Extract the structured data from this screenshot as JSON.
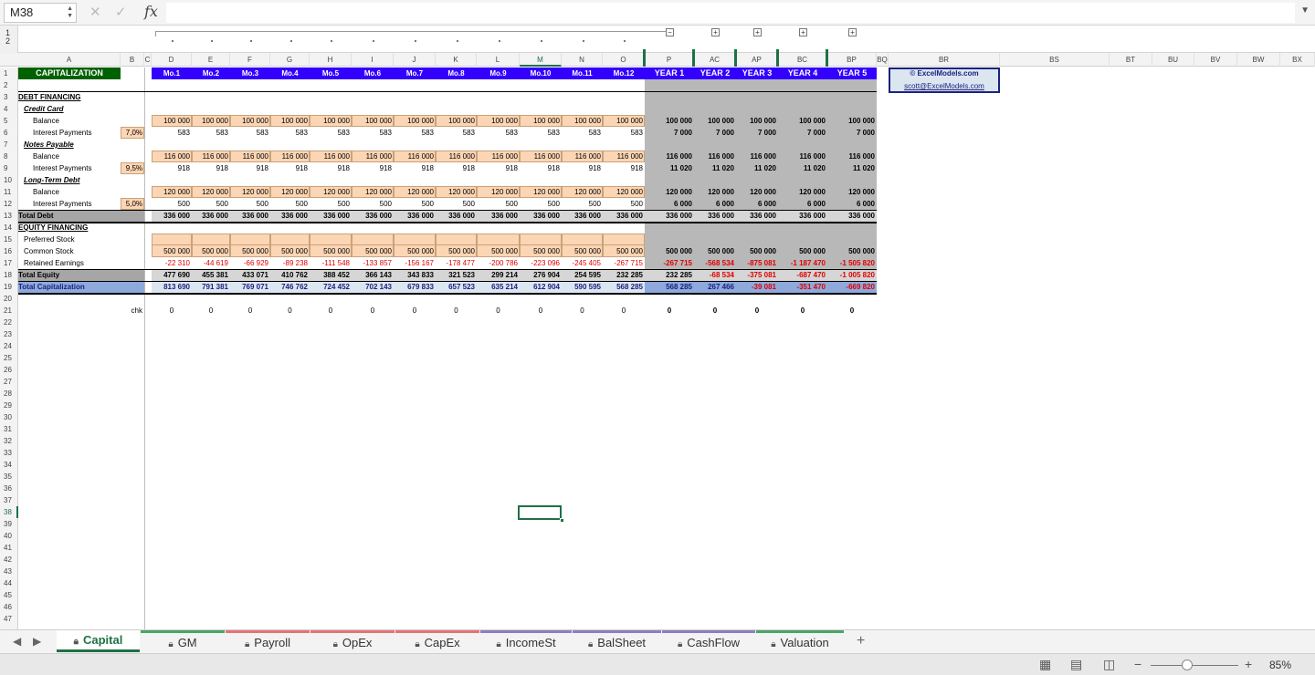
{
  "formula_bar": {
    "name_box": "M38",
    "fx": "fx"
  },
  "outline": {
    "levels": [
      "1",
      "2"
    ],
    "buttons": [
      "−",
      "+",
      "+",
      "+",
      "+"
    ]
  },
  "columns": [
    "A",
    "B",
    "C",
    "D",
    "E",
    "F",
    "G",
    "H",
    "I",
    "J",
    "K",
    "L",
    "M",
    "N",
    "O",
    "P",
    "AC",
    "AP",
    "BC",
    "BP",
    "BQ",
    "BR",
    "BS",
    "BT",
    "BU",
    "BV",
    "BW",
    "BX"
  ],
  "active_col": "M",
  "active_row": "38",
  "rows": [
    "1",
    "2",
    "3",
    "4",
    "5",
    "6",
    "7",
    "8",
    "9",
    "10",
    "11",
    "12",
    "13",
    "14",
    "15",
    "16",
    "17",
    "18",
    "19",
    "20",
    "21",
    "22",
    "23",
    "24",
    "25",
    "26",
    "27",
    "28",
    "29",
    "30",
    "31",
    "32",
    "33",
    "34",
    "35",
    "36",
    "37",
    "38",
    "39",
    "40",
    "41",
    "42",
    "43",
    "44",
    "45",
    "46",
    "47"
  ],
  "sheet": {
    "title": "CAPITALIZATION",
    "months": [
      "Mo.1",
      "Mo.2",
      "Mo.3",
      "Mo.4",
      "Mo.5",
      "Mo.6",
      "Mo.7",
      "Mo.8",
      "Mo.9",
      "Mo.10",
      "Mo.11",
      "Mo.12"
    ],
    "years": [
      "YEAR 1",
      "YEAR 2",
      "YEAR 3",
      "YEAR 4",
      "YEAR 5"
    ],
    "copyright": "© ExcelModels.com",
    "email": "scott@ExcelModels.com",
    "labels": {
      "debt_financing": "DEBT FINANCING",
      "credit_card": "Credit Card",
      "balance": "Balance",
      "interest_payments": "Interest Payments",
      "notes_payable": "Notes Payable",
      "long_term_debt": "Long-Term Debt",
      "total_debt": "Total Debt",
      "equity_financing": "EQUITY FINANCING",
      "preferred_stock": "Preferred Stock",
      "common_stock": "Common Stock",
      "retained_earnings": "Retained Earnings",
      "total_equity": "Total Equity",
      "total_capitalization": "Total Capitalization",
      "chk": "chk"
    },
    "rates": {
      "credit_card": "7,0%",
      "notes_payable": "9,5%",
      "long_term_debt": "5,0%"
    },
    "data": {
      "cc_balance": [
        "100 000",
        "100 000",
        "100 000",
        "100 000",
        "100 000",
        "100 000",
        "100 000",
        "100 000",
        "100 000",
        "100 000",
        "100 000",
        "100 000",
        "100 000",
        "100 000",
        "100 000",
        "100 000",
        "100 000"
      ],
      "cc_interest": [
        "583",
        "583",
        "583",
        "583",
        "583",
        "583",
        "583",
        "583",
        "583",
        "583",
        "583",
        "583",
        "7 000",
        "7 000",
        "7 000",
        "7 000",
        "7 000"
      ],
      "np_balance": [
        "116 000",
        "116 000",
        "116 000",
        "116 000",
        "116 000",
        "116 000",
        "116 000",
        "116 000",
        "116 000",
        "116 000",
        "116 000",
        "116 000",
        "116 000",
        "116 000",
        "116 000",
        "116 000",
        "116 000"
      ],
      "np_interest": [
        "918",
        "918",
        "918",
        "918",
        "918",
        "918",
        "918",
        "918",
        "918",
        "918",
        "918",
        "918",
        "11 020",
        "11 020",
        "11 020",
        "11 020",
        "11 020"
      ],
      "ltd_balance": [
        "120 000",
        "120 000",
        "120 000",
        "120 000",
        "120 000",
        "120 000",
        "120 000",
        "120 000",
        "120 000",
        "120 000",
        "120 000",
        "120 000",
        "120 000",
        "120 000",
        "120 000",
        "120 000",
        "120 000"
      ],
      "ltd_interest": [
        "500",
        "500",
        "500",
        "500",
        "500",
        "500",
        "500",
        "500",
        "500",
        "500",
        "500",
        "500",
        "6 000",
        "6 000",
        "6 000",
        "6 000",
        "6 000"
      ],
      "total_debt": [
        "336 000",
        "336 000",
        "336 000",
        "336 000",
        "336 000",
        "336 000",
        "336 000",
        "336 000",
        "336 000",
        "336 000",
        "336 000",
        "336 000",
        "336 000",
        "336 000",
        "336 000",
        "336 000",
        "336 000"
      ],
      "preferred_stock": [
        "",
        "",
        "",
        "",
        "",
        "",
        "",
        "",
        "",
        "",
        "",
        "",
        "",
        "",
        "",
        "",
        ""
      ],
      "common_stock": [
        "500 000",
        "500 000",
        "500 000",
        "500 000",
        "500 000",
        "500 000",
        "500 000",
        "500 000",
        "500 000",
        "500 000",
        "500 000",
        "500 000",
        "500 000",
        "500 000",
        "500 000",
        "500 000",
        "500 000"
      ],
      "retained_earnings": [
        "-22 310",
        "-44 619",
        "-66 929",
        "-89 238",
        "-111 548",
        "-133 857",
        "-156 167",
        "-178 477",
        "-200 786",
        "-223 096",
        "-245 405",
        "-267 715",
        "-267 715",
        "-568 534",
        "-875 081",
        "-1 187 470",
        "-1 505 820"
      ],
      "total_equity": [
        "477 690",
        "455 381",
        "433 071",
        "410 762",
        "388 452",
        "366 143",
        "343 833",
        "321 523",
        "299 214",
        "276 904",
        "254 595",
        "232 285",
        "232 285",
        "-68 534",
        "-375 081",
        "-687 470",
        "-1 005 820"
      ],
      "total_capitalization": [
        "813 690",
        "791 381",
        "769 071",
        "746 762",
        "724 452",
        "702 143",
        "679 833",
        "657 523",
        "635 214",
        "612 904",
        "590 595",
        "568 285",
        "568 285",
        "267 466",
        "-39 081",
        "-351 470",
        "-669 820"
      ],
      "chk": [
        "0",
        "0",
        "0",
        "0",
        "0",
        "0",
        "0",
        "0",
        "0",
        "0",
        "0",
        "0",
        "0",
        "0",
        "0",
        "0",
        "0"
      ]
    }
  },
  "tabs": [
    {
      "label": "Capital",
      "color": "#4aa564",
      "active": true
    },
    {
      "label": "GM",
      "color": "#4aa564"
    },
    {
      "label": "Payroll",
      "color": "#e57373"
    },
    {
      "label": "OpEx",
      "color": "#e57373"
    },
    {
      "label": "CapEx",
      "color": "#e57373"
    },
    {
      "label": "IncomeSt",
      "color": "#8e7cc3"
    },
    {
      "label": "BalSheet",
      "color": "#8e7cc3"
    },
    {
      "label": "CashFlow",
      "color": "#8e7cc3"
    },
    {
      "label": "Valuation",
      "color": "#4aa564"
    }
  ],
  "status": {
    "zoom": "85%"
  },
  "colors": {
    "header_green": "#006100",
    "month_purple": "#3300ff",
    "year_gray": "#b8b8b8",
    "input_orange": "#fcd5b4",
    "total_gray": "#a6a6a6",
    "total_cap_blue": "#8ea9db",
    "info_blue": "#dce6f1"
  }
}
